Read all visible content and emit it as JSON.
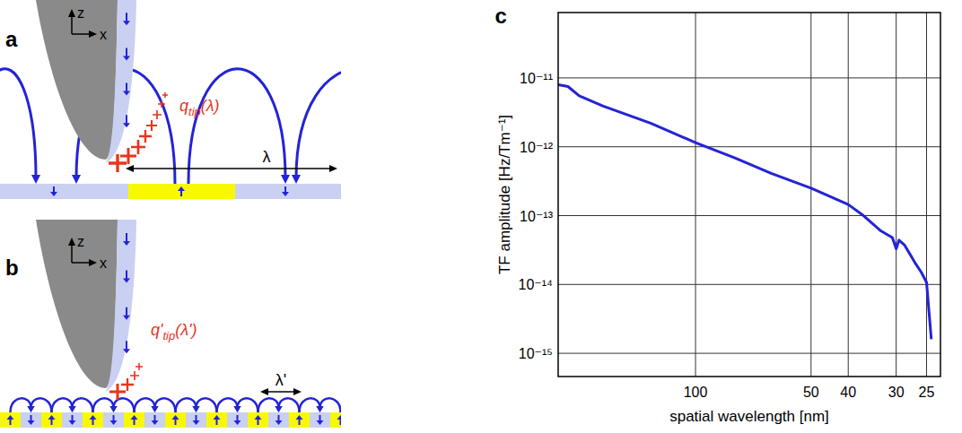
{
  "chart_panel_label": "c",
  "diagrams": [
    {
      "label": "a",
      "axis_labels": [
        "z",
        "x"
      ],
      "charge_label": {
        "symbol": "q",
        "subscript": "tip",
        "argument": "(λ)"
      },
      "wavelength_label": "λ"
    },
    {
      "label": "b",
      "axis_labels": [
        "z",
        "x"
      ],
      "charge_label": {
        "symbol": "q'",
        "subscript": "tip",
        "argument": "(λ')"
      },
      "wavelength_label": "λ'"
    }
  ],
  "chart_data": {
    "type": "line",
    "x_label": "spatial wavelength [nm]",
    "y_label": "TF amplitude [Hz/Tm⁻¹]",
    "x": [
      228,
      215,
      201,
      174,
      131,
      100,
      79,
      63.5,
      50,
      40,
      36.5,
      32.9,
      30.7,
      30,
      29.5,
      28.5,
      26.7,
      25.8,
      25,
      24.3
    ],
    "values": [
      8e-12,
      7.5e-12,
      5.5e-12,
      3.9e-12,
      2.2e-12,
      1.15e-12,
      6.9e-13,
      4.1e-13,
      2.5e-13,
      1.45e-13,
      1e-13,
      6e-14,
      4.8e-14,
      3.3e-14,
      4.4e-14,
      3.7e-14,
      2e-14,
      1.5e-14,
      1.07e-14,
      1.6e-15
    ],
    "color": "#2323d8",
    "log": true,
    "grid": true,
    "xlim": [
      228,
      23
    ],
    "ylim": [
      4.6e-16,
      8.9e-11
    ],
    "xticks": [
      100,
      50,
      40,
      30,
      25
    ],
    "yticks": [
      {
        "value": 1e-11,
        "label": "10⁻¹¹"
      },
      {
        "value": 1e-12,
        "label": "10⁻¹²"
      },
      {
        "value": 1e-13,
        "label": "10⁻¹³"
      },
      {
        "value": 1e-14,
        "label": "10⁻¹⁴"
      },
      {
        "value": 1e-15,
        "label": "10⁻¹⁵"
      }
    ]
  }
}
